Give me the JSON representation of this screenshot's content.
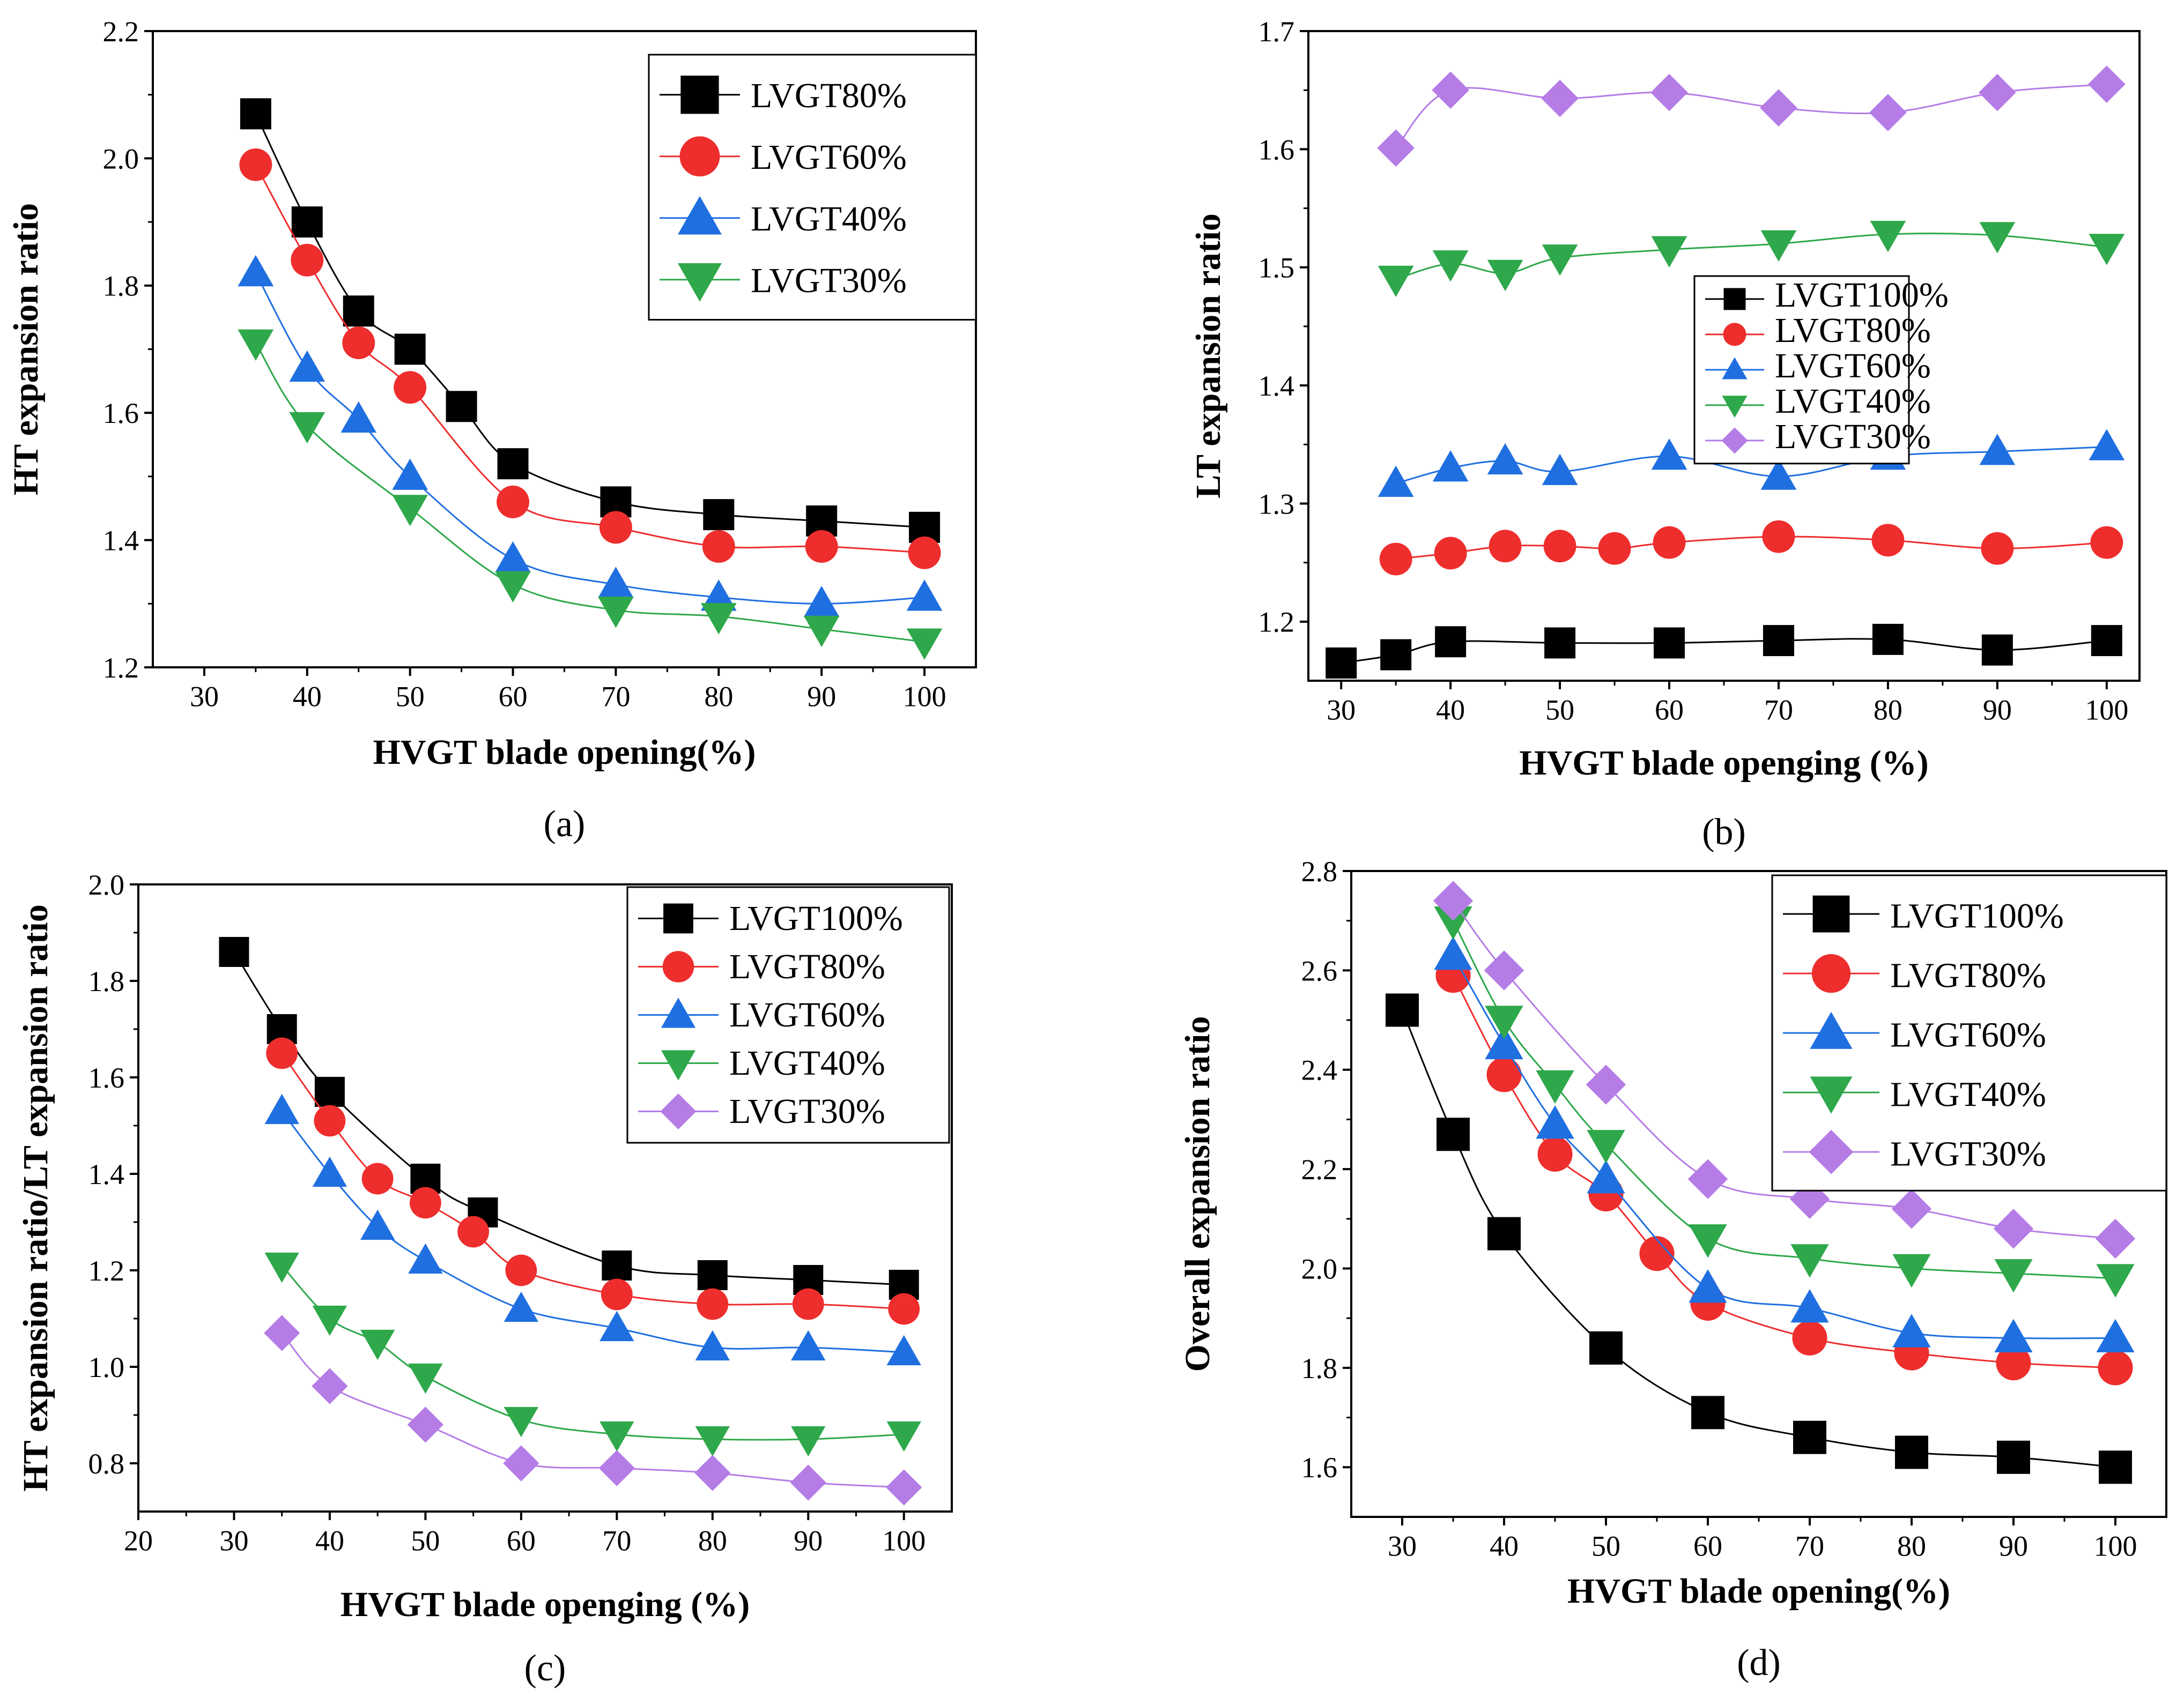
{
  "colors": {
    "black": "#000000",
    "red": "#ee2d2d",
    "blue": "#1f6fe0",
    "green": "#2ea84a",
    "purple": "#b57ce6"
  },
  "chart_data": [
    {
      "id": "a",
      "type": "line",
      "caption": "(a)",
      "xlabel": "HVGT blade opening(%)",
      "ylabel": "HT expansion ratio",
      "xlim": [
        25,
        105
      ],
      "ylim": [
        1.2,
        2.2
      ],
      "xticks": [
        30,
        40,
        50,
        60,
        70,
        80,
        90,
        100
      ],
      "xtick_labels": [
        "30",
        "40",
        "50",
        "60",
        "70",
        "80",
        "90",
        "100"
      ],
      "yticks": [
        1.2,
        1.4,
        1.6,
        1.8,
        2.0,
        2.2
      ],
      "ytick_labels": [
        "1.2",
        "1.4",
        "1.6",
        "1.8",
        "2.0",
        "2.2"
      ],
      "legend_position": "top-right",
      "series": [
        {
          "name": "LVGT80%",
          "marker": "square",
          "color": "#000000",
          "x": [
            35,
            40,
            45,
            50,
            55,
            60,
            70,
            80,
            90,
            100
          ],
          "y": [
            2.07,
            1.9,
            1.76,
            1.7,
            1.61,
            1.52,
            1.46,
            1.44,
            1.43,
            1.42
          ]
        },
        {
          "name": "LVGT60%",
          "marker": "circle",
          "color": "#ee2d2d",
          "x": [
            35,
            40,
            45,
            50,
            60,
            70,
            80,
            90,
            100
          ],
          "y": [
            1.99,
            1.84,
            1.71,
            1.64,
            1.46,
            1.42,
            1.39,
            1.39,
            1.38
          ]
        },
        {
          "name": "LVGT40%",
          "marker": "triangle-up",
          "color": "#1f6fe0",
          "x": [
            35,
            40,
            45,
            50,
            60,
            70,
            80,
            90,
            100
          ],
          "y": [
            1.82,
            1.67,
            1.59,
            1.5,
            1.37,
            1.33,
            1.31,
            1.3,
            1.31
          ]
        },
        {
          "name": "LVGT30%",
          "marker": "triangle-down",
          "color": "#2ea84a",
          "x": [
            35,
            40,
            50,
            60,
            70,
            80,
            90,
            100
          ],
          "y": [
            1.71,
            1.58,
            1.45,
            1.33,
            1.29,
            1.28,
            1.26,
            1.24
          ]
        }
      ]
    },
    {
      "id": "b",
      "type": "line",
      "caption": "(b)",
      "xlabel": "HVGT blade openging (%)",
      "ylabel": "LT expansion ratio",
      "xlim": [
        27,
        103
      ],
      "ylim": [
        1.15,
        1.7
      ],
      "xticks": [
        30,
        40,
        50,
        60,
        70,
        80,
        90,
        100
      ],
      "xtick_labels": [
        "30",
        "40",
        "50",
        "60",
        "70",
        "80",
        "90",
        "100"
      ],
      "yticks": [
        1.2,
        1.3,
        1.4,
        1.5,
        1.6,
        1.7
      ],
      "ytick_labels": [
        "1.2",
        "1.3",
        "1.4",
        "1.5",
        "1.6",
        "1.7"
      ],
      "legend_position": "center",
      "series": [
        {
          "name": "LVGT100%",
          "marker": "square",
          "color": "#000000",
          "x": [
            30,
            35,
            40,
            50,
            60,
            70,
            80,
            90,
            100
          ],
          "y": [
            1.165,
            1.172,
            1.183,
            1.182,
            1.182,
            1.184,
            1.185,
            1.176,
            1.184
          ]
        },
        {
          "name": "LVGT80%",
          "marker": "circle",
          "color": "#ee2d2d",
          "x": [
            35,
            40,
            45,
            50,
            55,
            60,
            70,
            80,
            90,
            100
          ],
          "y": [
            1.253,
            1.258,
            1.264,
            1.264,
            1.262,
            1.267,
            1.272,
            1.269,
            1.262,
            1.267
          ]
        },
        {
          "name": "LVGT60%",
          "marker": "triangle-up",
          "color": "#1f6fe0",
          "x": [
            35,
            40,
            45,
            50,
            60,
            70,
            80,
            90,
            100
          ],
          "y": [
            1.317,
            1.33,
            1.336,
            1.327,
            1.34,
            1.323,
            1.34,
            1.344,
            1.348
          ]
        },
        {
          "name": "LVGT40%",
          "marker": "triangle-down",
          "color": "#2ea84a",
          "x": [
            35,
            40,
            45,
            50,
            60,
            70,
            80,
            90,
            100
          ],
          "y": [
            1.49,
            1.503,
            1.495,
            1.508,
            1.515,
            1.52,
            1.528,
            1.527,
            1.517
          ]
        },
        {
          "name": "LVGT30%",
          "marker": "diamond",
          "color": "#b57ce6",
          "x": [
            35,
            40,
            50,
            60,
            70,
            80,
            90,
            100
          ],
          "y": [
            1.601,
            1.65,
            1.643,
            1.648,
            1.635,
            1.631,
            1.648,
            1.655
          ]
        }
      ]
    },
    {
      "id": "c",
      "type": "line",
      "caption": "(c)",
      "xlabel": "HVGT blade openging (%)",
      "ylabel": "HT expansion ratio/LT expansion ratio",
      "xlim": [
        20,
        105
      ],
      "ylim": [
        0.7,
        2.0
      ],
      "xticks": [
        20,
        30,
        40,
        50,
        60,
        70,
        80,
        90,
        100
      ],
      "xtick_labels": [
        "20",
        "30",
        "40",
        "50",
        "60",
        "70",
        "80",
        "90",
        "100"
      ],
      "yticks": [
        0.8,
        1.0,
        1.2,
        1.4,
        1.6,
        1.8,
        2.0
      ],
      "ytick_labels": [
        "0.8",
        "1.0",
        "1.2",
        "1.4",
        "1.6",
        "1.8",
        "2.0"
      ],
      "legend_position": "top-right",
      "series": [
        {
          "name": "LVGT100%",
          "marker": "square",
          "color": "#000000",
          "x": [
            30,
            35,
            40,
            50,
            56,
            70,
            80,
            90,
            100
          ],
          "y": [
            1.86,
            1.7,
            1.57,
            1.39,
            1.32,
            1.21,
            1.19,
            1.18,
            1.17
          ]
        },
        {
          "name": "LVGT80%",
          "marker": "circle",
          "color": "#ee2d2d",
          "x": [
            35,
            40,
            45,
            50,
            55,
            60,
            70,
            80,
            90,
            100
          ],
          "y": [
            1.65,
            1.51,
            1.39,
            1.34,
            1.28,
            1.2,
            1.15,
            1.13,
            1.13,
            1.12
          ]
        },
        {
          "name": "LVGT60%",
          "marker": "triangle-up",
          "color": "#1f6fe0",
          "x": [
            35,
            40,
            45,
            50,
            60,
            70,
            80,
            90,
            100
          ],
          "y": [
            1.53,
            1.4,
            1.29,
            1.22,
            1.12,
            1.08,
            1.04,
            1.04,
            1.03
          ]
        },
        {
          "name": "LVGT40%",
          "marker": "triangle-down",
          "color": "#2ea84a",
          "x": [
            35,
            40,
            45,
            50,
            60,
            70,
            80,
            90,
            100
          ],
          "y": [
            1.21,
            1.1,
            1.05,
            0.98,
            0.89,
            0.86,
            0.85,
            0.85,
            0.86
          ]
        },
        {
          "name": "LVGT30%",
          "marker": "diamond",
          "color": "#b57ce6",
          "x": [
            35,
            40,
            50,
            60,
            70,
            80,
            90,
            100
          ],
          "y": [
            1.07,
            0.96,
            0.88,
            0.8,
            0.79,
            0.78,
            0.76,
            0.75
          ]
        }
      ]
    },
    {
      "id": "d",
      "type": "line",
      "caption": "(d)",
      "xlabel": "HVGT blade opening(%)",
      "ylabel": "Overall expansion ratio",
      "xlim": [
        25,
        105
      ],
      "ylim": [
        1.5,
        2.8
      ],
      "xticks": [
        30,
        40,
        50,
        60,
        70,
        80,
        90,
        100
      ],
      "xtick_labels": [
        "30",
        "40",
        "50",
        "60",
        "70",
        "80",
        "90",
        "100"
      ],
      "yticks": [
        1.6,
        1.8,
        2.0,
        2.2,
        2.4,
        2.6,
        2.8
      ],
      "ytick_labels": [
        "1.6",
        "1.8",
        "2.0",
        "2.2",
        "2.4",
        "2.6",
        "2.8"
      ],
      "legend_position": "top-right",
      "series": [
        {
          "name": "LVGT100%",
          "marker": "square",
          "color": "#000000",
          "x": [
            30,
            35,
            40,
            50,
            60,
            70,
            80,
            90,
            100
          ],
          "y": [
            2.52,
            2.27,
            2.07,
            1.84,
            1.71,
            1.66,
            1.63,
            1.62,
            1.6
          ]
        },
        {
          "name": "LVGT80%",
          "marker": "circle",
          "color": "#ee2d2d",
          "x": [
            35,
            40,
            45,
            50,
            55,
            60,
            70,
            80,
            90,
            100
          ],
          "y": [
            2.59,
            2.39,
            2.23,
            2.15,
            2.03,
            1.93,
            1.86,
            1.83,
            1.81,
            1.8
          ]
        },
        {
          "name": "LVGT60%",
          "marker": "triangle-up",
          "color": "#1f6fe0",
          "x": [
            35,
            40,
            45,
            50,
            60,
            70,
            80,
            90,
            100
          ],
          "y": [
            2.63,
            2.45,
            2.29,
            2.18,
            1.96,
            1.92,
            1.87,
            1.86,
            1.86
          ]
        },
        {
          "name": "LVGT40%",
          "marker": "triangle-down",
          "color": "#2ea84a",
          "x": [
            35,
            40,
            45,
            50,
            60,
            70,
            80,
            90,
            100
          ],
          "y": [
            2.7,
            2.5,
            2.37,
            2.25,
            2.06,
            2.02,
            2.0,
            1.99,
            1.98
          ]
        },
        {
          "name": "LVGT30%",
          "marker": "diamond",
          "color": "#b57ce6",
          "x": [
            35,
            40,
            50,
            60,
            70,
            80,
            90,
            100
          ],
          "y": [
            2.74,
            2.6,
            2.37,
            2.18,
            2.14,
            2.12,
            2.08,
            2.06
          ]
        }
      ]
    }
  ]
}
